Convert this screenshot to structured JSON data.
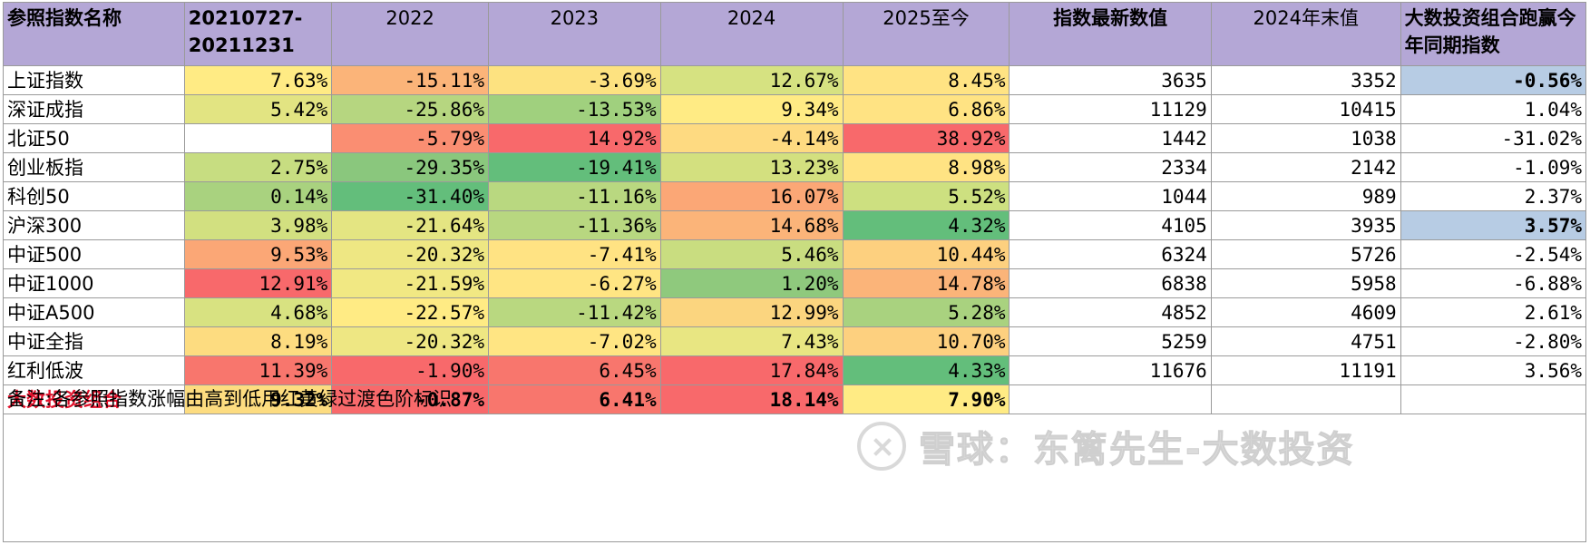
{
  "columns": [
    "参照指数名称",
    "20210727-20211231",
    "2022",
    "2023",
    "2024",
    "2025至今",
    "指数最新数值",
    "2024年末值",
    "大数投资组合跑赢今年同期指数"
  ],
  "rows": [
    {
      "name": "上证指数",
      "c1": "7.63%",
      "c2": "-15.11%",
      "c3": "-3.69%",
      "c4": "12.67%",
      "c5": "8.45%",
      "latest": "3635",
      "end2024": "3352",
      "beat": "-0.56%"
    },
    {
      "name": "深证成指",
      "c1": "5.42%",
      "c2": "-25.86%",
      "c3": "-13.53%",
      "c4": "9.34%",
      "c5": "6.86%",
      "latest": "11129",
      "end2024": "10415",
      "beat": "1.04%"
    },
    {
      "name": "北证50",
      "c1": "",
      "c2": "-5.79%",
      "c3": "14.92%",
      "c4": "-4.14%",
      "c5": "38.92%",
      "latest": "1442",
      "end2024": "1038",
      "beat": "-31.02%"
    },
    {
      "name": "创业板指",
      "c1": "2.75%",
      "c2": "-29.35%",
      "c3": "-19.41%",
      "c4": "13.23%",
      "c5": "8.98%",
      "latest": "2334",
      "end2024": "2142",
      "beat": "-1.09%"
    },
    {
      "name": "科创50",
      "c1": "0.14%",
      "c2": "-31.40%",
      "c3": "-11.16%",
      "c4": "16.07%",
      "c5": "5.52%",
      "latest": "1044",
      "end2024": "989",
      "beat": "2.37%"
    },
    {
      "name": "沪深300",
      "c1": "3.98%",
      "c2": "-21.64%",
      "c3": "-11.36%",
      "c4": "14.68%",
      "c5": "4.32%",
      "latest": "4105",
      "end2024": "3935",
      "beat": "3.57%"
    },
    {
      "name": "中证500",
      "c1": "9.53%",
      "c2": "-20.32%",
      "c3": "-7.41%",
      "c4": "5.46%",
      "c5": "10.44%",
      "latest": "6324",
      "end2024": "5726",
      "beat": "-2.54%"
    },
    {
      "name": "中证1000",
      "c1": "12.91%",
      "c2": "-21.59%",
      "c3": "-6.27%",
      "c4": "1.20%",
      "c5": "14.78%",
      "latest": "6838",
      "end2024": "5958",
      "beat": "-6.88%"
    },
    {
      "name": "中证A500",
      "c1": "4.68%",
      "c2": "-22.57%",
      "c3": "-11.42%",
      "c4": "12.99%",
      "c5": "5.28%",
      "latest": "4852",
      "end2024": "4609",
      "beat": "2.61%"
    },
    {
      "name": "中证全指",
      "c1": "8.19%",
      "c2": "-20.32%",
      "c3": "-7.02%",
      "c4": "7.43%",
      "c5": "10.70%",
      "latest": "5259",
      "end2024": "4751",
      "beat": "-2.80%"
    },
    {
      "name": "红利低波",
      "c1": "11.39%",
      "c2": "-1.90%",
      "c3": "6.45%",
      "c4": "17.84%",
      "c5": "4.33%",
      "latest": "11676",
      "end2024": "11191",
      "beat": "3.56%"
    }
  ],
  "portfolio": {
    "name": "大数投资组合",
    "c1": "9.32%",
    "c2": "-0.87%",
    "c3": "6.41%",
    "c4": "18.14%",
    "c5": "7.90%"
  },
  "note": "备注:各参照指数涨幅由高到低用红黄绿过渡色阶标识",
  "watermark": "雪球：东篱先生-大数投资",
  "colors": {
    "header_bg": "#b4a7d6",
    "highlight_blue": "#b7cce4",
    "portfolio_name": "#e0102a",
    "scale": [
      "#f8696b",
      "#fa9a73",
      "#fddc80",
      "#ffeb84",
      "#d3e07f",
      "#a9d27f",
      "#63be7b"
    ]
  },
  "cell_colors": [
    [
      "#ffeb84",
      "#fbb479",
      "#fde280",
      "#d6e281",
      "#ffe383"
    ],
    [
      "#e2e482",
      "#b6d680",
      "#a0d07e",
      "#ffeb84",
      "#ffe383"
    ],
    [
      "",
      "#fa8e72",
      "#f8696b",
      "#feda81",
      "#f8696b"
    ],
    [
      "#c7dd81",
      "#8ac77d",
      "#63be7b",
      "#d3e07f",
      "#ffe383"
    ],
    [
      "#a9d27f",
      "#63be7b",
      "#b9d880",
      "#fba776",
      "#cde080"
    ],
    [
      "#d2e080",
      "#e4e582",
      "#b8d780",
      "#fbb479",
      "#63be7b"
    ],
    [
      "#fba776",
      "#eee783",
      "#ffe383",
      "#c9dd80",
      "#fdd07f"
    ],
    [
      "#f8696b",
      "#f1e883",
      "#ffe583",
      "#8fc97d",
      "#fbb479"
    ],
    [
      "#d8e281",
      "#ffeb84",
      "#b9d880",
      "#fbd57f",
      "#a9d27f"
    ],
    [
      "#fddc80",
      "#eee783",
      "#ffe583",
      "#e8e682",
      "#fdd07f"
    ],
    [
      "#f8766d",
      "#f8696b",
      "#f8766d",
      "#f8696b",
      "#63be7b"
    ]
  ],
  "portfolio_colors": [
    "#fddc80",
    "#f8696b",
    "#f8766d",
    "#f8696b",
    "#ffeb84"
  ]
}
